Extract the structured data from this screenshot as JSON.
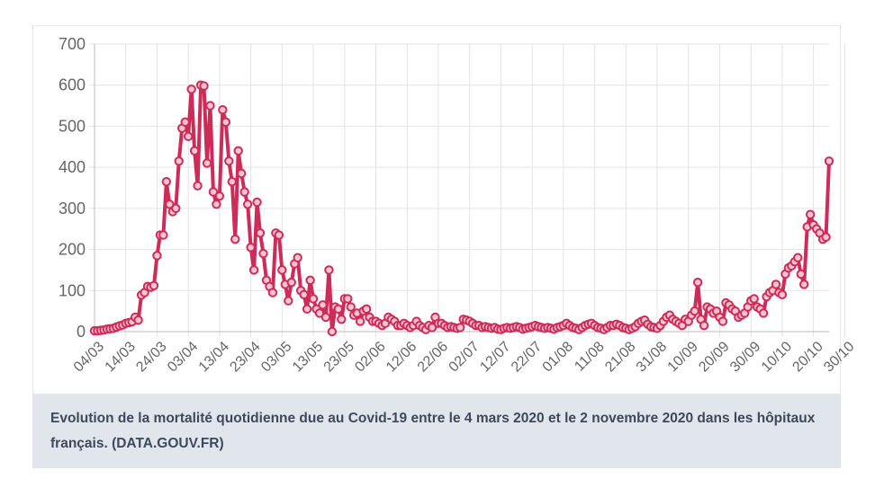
{
  "caption": {
    "text": "Evolution de la mortalité quotidienne due au Covid-19 entre le 4 mars 2020 et le 2 novembre 2020 dans les hôpitaux français.",
    "source": "(DATA.GOUV.FR)"
  },
  "colors": {
    "line": "#cf2b58",
    "grid": "#e3e3e3",
    "axis": "#bdbdbd",
    "caption_bg": "#e1e5ec",
    "caption_text": "#3d4a5c"
  },
  "chart_data": {
    "type": "line",
    "title": "",
    "xlabel": "",
    "ylabel": "",
    "ylim": [
      0,
      700
    ],
    "yticks": [
      0,
      100,
      200,
      300,
      400,
      500,
      600,
      700
    ],
    "grid": true,
    "legend": "none",
    "x_start": "04/03",
    "xticks": [
      "04/03",
      "14/03",
      "24/03",
      "03/04",
      "13/04",
      "23/04",
      "03/05",
      "13/05",
      "23/05",
      "02/06",
      "12/06",
      "22/06",
      "02/07",
      "12/07",
      "22/07",
      "01/08",
      "11/08",
      "21/08",
      "31/08",
      "10/09",
      "20/09",
      "30/09",
      "10/10",
      "20/10",
      "30/10"
    ],
    "series": [
      {
        "values": [
          2,
          2,
          3,
          4,
          6,
          7,
          8,
          11,
          14,
          16,
          20,
          22,
          24,
          35,
          28,
          89,
          95,
          110,
          108,
          112,
          185,
          235,
          235,
          365,
          310,
          292,
          300,
          415,
          495,
          510,
          475,
          590,
          440,
          355,
          600,
          598,
          410,
          550,
          340,
          310,
          330,
          540,
          510,
          415,
          365,
          225,
          440,
          385,
          340,
          310,
          205,
          150,
          315,
          240,
          190,
          125,
          110,
          95,
          240,
          235,
          150,
          115,
          75,
          120,
          165,
          180,
          100,
          90,
          55,
          125,
          80,
          55,
          45,
          65,
          35,
          150,
          0,
          60,
          55,
          30,
          80,
          80,
          60,
          40,
          45,
          25,
          50,
          55,
          35,
          25,
          25,
          20,
          15,
          20,
          35,
          30,
          25,
          15,
          15,
          20,
          15,
          10,
          15,
          25,
          15,
          10,
          5,
          15,
          10,
          35,
          20,
          20,
          15,
          10,
          12,
          10,
          8,
          10,
          30,
          28,
          25,
          20,
          15,
          15,
          10,
          12,
          10,
          8,
          10,
          6,
          5,
          8,
          10,
          8,
          10,
          12,
          10,
          6,
          8,
          10,
          12,
          15,
          12,
          10,
          8,
          10,
          8,
          6,
          10,
          12,
          15,
          20,
          15,
          10,
          8,
          5,
          10,
          15,
          18,
          20,
          15,
          10,
          8,
          5,
          10,
          15,
          15,
          18,
          15,
          10,
          8,
          5,
          8,
          12,
          20,
          25,
          28,
          18,
          12,
          10,
          8,
          15,
          25,
          35,
          40,
          30,
          25,
          20,
          15,
          30,
          25,
          40,
          50,
          120,
          30,
          15,
          60,
          55,
          45,
          50,
          35,
          25,
          70,
          65,
          55,
          50,
          35,
          40,
          45,
          60,
          75,
          80,
          60,
          55,
          45,
          85,
          95,
          100,
          115,
          95,
          90,
          140,
          155,
          160,
          170,
          180,
          140,
          115,
          255,
          285,
          260,
          250,
          240,
          225,
          230,
          415
        ]
      }
    ]
  }
}
